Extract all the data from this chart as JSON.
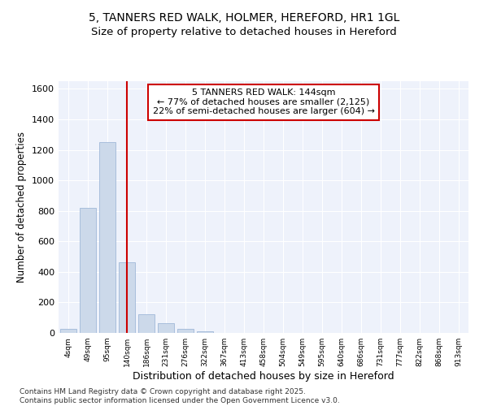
{
  "title1": "5, TANNERS RED WALK, HOLMER, HEREFORD, HR1 1GL",
  "title2": "Size of property relative to detached houses in Hereford",
  "xlabel": "Distribution of detached houses by size in Hereford",
  "ylabel": "Number of detached properties",
  "categories": [
    "4sqm",
    "49sqm",
    "95sqm",
    "140sqm",
    "186sqm",
    "231sqm",
    "276sqm",
    "322sqm",
    "367sqm",
    "413sqm",
    "458sqm",
    "504sqm",
    "549sqm",
    "595sqm",
    "640sqm",
    "686sqm",
    "731sqm",
    "777sqm",
    "822sqm",
    "868sqm",
    "913sqm"
  ],
  "values": [
    25,
    820,
    1250,
    465,
    125,
    65,
    25,
    10,
    0,
    0,
    0,
    0,
    0,
    0,
    0,
    0,
    0,
    0,
    0,
    0,
    0
  ],
  "bar_color": "#ccd9ea",
  "bar_edge_color": "#a0b8d8",
  "vline_x": 3,
  "vline_color": "#cc0000",
  "ylim": [
    0,
    1650
  ],
  "yticks": [
    0,
    200,
    400,
    600,
    800,
    1000,
    1200,
    1400,
    1600
  ],
  "annotation_line1": "5 TANNERS RED WALK: 144sqm",
  "annotation_line2": "← 77% of detached houses are smaller (2,125)",
  "annotation_line3": "22% of semi-detached houses are larger (604) →",
  "annotation_box_color": "#cc0000",
  "bg_color": "#eef2fb",
  "footer_text": "Contains HM Land Registry data © Crown copyright and database right 2025.\nContains public sector information licensed under the Open Government Licence v3.0.",
  "title1_fontsize": 10,
  "title2_fontsize": 9.5,
  "xlabel_fontsize": 9,
  "ylabel_fontsize": 8.5,
  "annotation_fontsize": 8,
  "footer_fontsize": 6.5
}
